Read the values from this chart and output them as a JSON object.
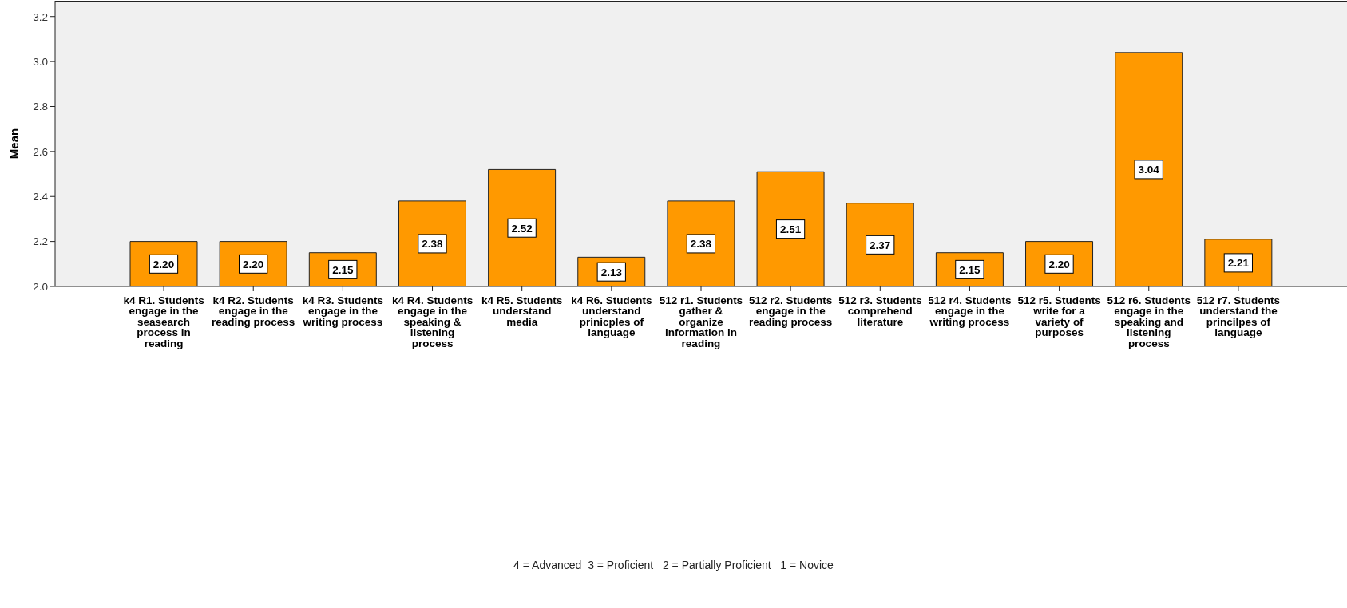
{
  "chart_data": {
    "type": "bar",
    "ylabel": "Mean",
    "categories": [
      "k4 R1. Students engage in the seasearch process in reading",
      "k4 R2. Students engage in the reading process",
      "k4 R3. Students engage in the writing process",
      "k4 R4. Students engage in the speaking & listening process",
      "k4 R5. Students understand media",
      "k4 R6. Students understand prinicples of language",
      "512 r1. Students gather & organize information in reading",
      "512 r2. Students engage in the reading process",
      "512 r3. Students comprehend literature",
      "512 r4. Students engage in the writing process",
      "512 r5. Students write for a variety of purposes",
      "512 r6. Students engage in the speaking and listening process",
      "512 r7. Students understand the princilpes of language"
    ],
    "values": [
      2.2,
      2.2,
      2.15,
      2.38,
      2.52,
      2.13,
      2.38,
      2.51,
      2.37,
      2.15,
      2.2,
      3.04,
      2.21
    ],
    "value_labels": [
      "2.20",
      "2.20",
      "2.15",
      "2.38",
      "2.52",
      "2.13",
      "2.38",
      "2.51",
      "2.37",
      "2.15",
      "2.20",
      "3.04",
      "2.21"
    ],
    "color": "#ff9900",
    "ylim": [
      2.0,
      3.27
    ],
    "yticks": [
      {
        "value": 2,
        "label": "2.0"
      },
      2.2,
      2.4,
      2.6,
      2.8,
      {
        "value": 3,
        "label": "3.0"
      },
      3.2
    ],
    "annotations": [
      "4 = Advanced  3 = Proficient   2 = Partially Proficient   1 = Novice"
    ]
  }
}
